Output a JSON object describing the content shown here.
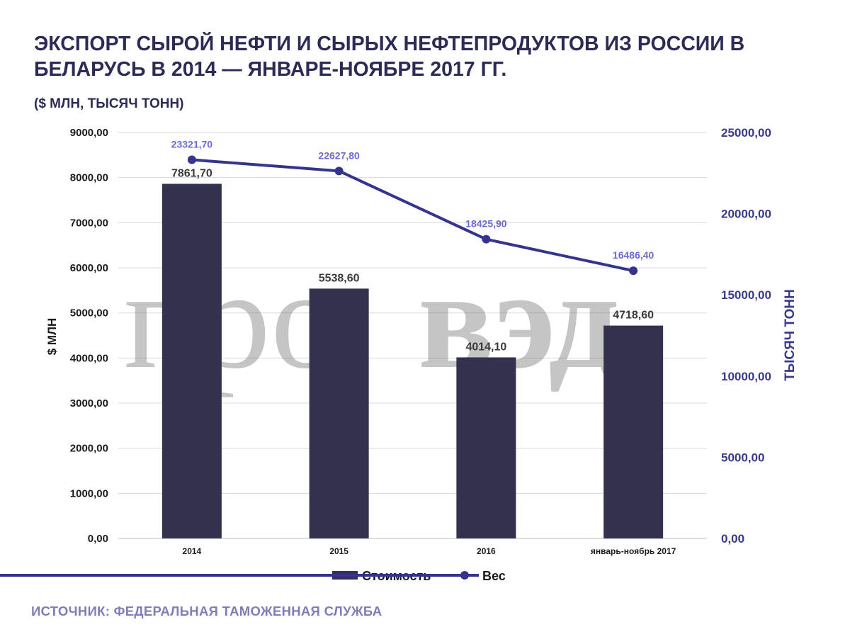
{
  "title": "ЭКСПОРТ СЫРОЙ НЕФТИ И СЫРЫХ НЕФТЕПРОДУКТОВ ИЗ РОССИИ В БЕЛАРУСЬ В 2014 — ЯНВАРЕ-НОЯБРЕ 2017 ГГ.",
  "subtitle": "($ МЛН, ТЫСЯЧ ТОНН)",
  "source": "ИСТОЧНИК: ФЕДЕРАЛЬНАЯ ТАМОЖЕННАЯ СЛУЖБА",
  "watermark": {
    "part1": "про",
    "part2": "вэд"
  },
  "colors": {
    "bar": "#32324f",
    "line": "#34348f",
    "line_label": "#6b6bd0",
    "grid": "#d9d9d9"
  },
  "chart_data": {
    "type": "bar",
    "categories": [
      "2014",
      "2015",
      "2016",
      "январь-ноябрь 2017"
    ],
    "series": [
      {
        "name": "Стоимость",
        "type": "bar",
        "axis": "left",
        "values": [
          7861.7,
          5538.6,
          4014.1,
          4718.6
        ],
        "labels": [
          "7861,70",
          "5538,60",
          "4014,10",
          "4718,60"
        ]
      },
      {
        "name": "Вес",
        "type": "line",
        "axis": "right",
        "values": [
          23321.7,
          22627.8,
          18425.9,
          16486.4
        ],
        "labels": [
          "23321,70",
          "22627,80",
          "18425,90",
          "16486,40"
        ]
      }
    ],
    "ylabel": "$ МЛН",
    "y2label": "ТЫСЯЧ ТОНН",
    "ylim": [
      0,
      9000
    ],
    "y2lim": [
      0,
      25000
    ],
    "yticks": [
      0,
      1000,
      2000,
      3000,
      4000,
      5000,
      6000,
      7000,
      8000,
      9000
    ],
    "yticklabels": [
      "0,00",
      "1000,00",
      "2000,00",
      "3000,00",
      "4000,00",
      "5000,00",
      "6000,00",
      "7000,00",
      "8000,00",
      "9000,00"
    ],
    "y2ticks": [
      0,
      5000,
      10000,
      15000,
      20000,
      25000
    ],
    "y2ticklabels": [
      "0,00",
      "5000,00",
      "10000,00",
      "15000,00",
      "20000,00",
      "25000,00"
    ],
    "grid": true,
    "legend": "bottom"
  }
}
